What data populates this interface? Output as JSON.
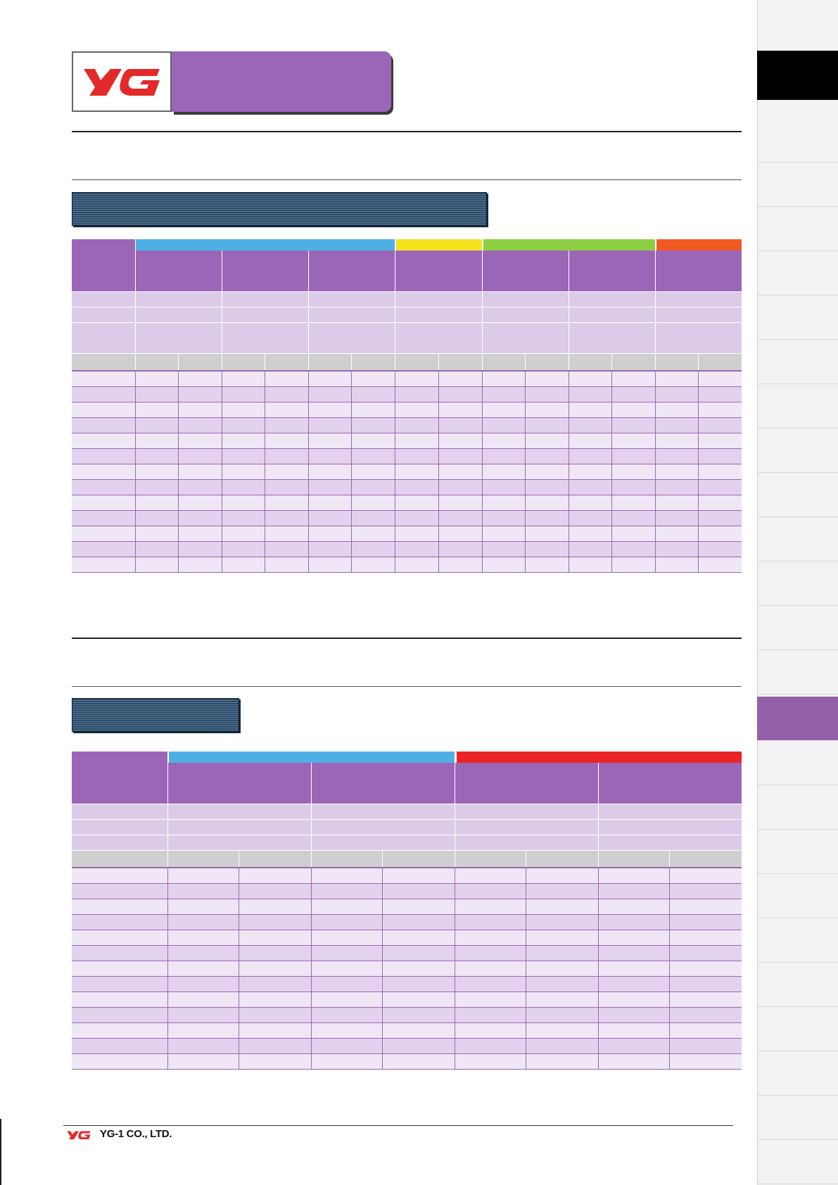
{
  "brand": {
    "logo_text": "YG",
    "company_name": "YG-1 CO., LTD.",
    "logo_color": "#e32a2a"
  },
  "colors": {
    "purple": "#9c66b8",
    "light_purple": "#dccbe8",
    "row_light": "#efe7f5",
    "row_dark": "#e3d2ee",
    "gray": "#cfcfcf",
    "cyan": "#4fb0e6",
    "yellow": "#f5e21c",
    "green": "#8ccf43",
    "orange": "#f05a22",
    "red": "#ea2327"
  },
  "table1": {
    "groups": [
      {
        "color": "#4fb0e6",
        "span": 3
      },
      {
        "color": "#f5e21c",
        "span": 1
      },
      {
        "color": "#8ccf43",
        "span": 2
      },
      {
        "color": "#f05a22",
        "span": 1
      }
    ],
    "material_columns": 7,
    "sub_columns_per_material": 2,
    "data_rows": 13
  },
  "table2": {
    "groups": [
      {
        "color": "#4fb0e6",
        "span": 2
      },
      {
        "color": "#ea2327",
        "span": 2
      }
    ],
    "material_columns": 4,
    "sub_columns_per_material": 2,
    "data_rows": 13
  }
}
